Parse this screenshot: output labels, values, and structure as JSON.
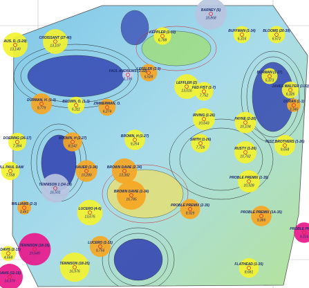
{
  "wells": [
    {
      "label": "BARNEY (5)",
      "value": "18,868",
      "color": "#b8c4e0"
    },
    {
      "label": "AUS. D. (1-29)",
      "value": "13,140",
      "color": "#f2f230"
    },
    {
      "label": "CROISSANT (27-40)",
      "value": "13,107",
      "color": "#f2f230"
    },
    {
      "label": "KEPPLER (1-33)",
      "value": "6,788",
      "color": "#f2f230"
    },
    {
      "label": "BUFFMAN (1-34)",
      "value": "6,316",
      "color": "#f2f230"
    },
    {
      "label": "BLOOMS (26-39)",
      "value": "6,572",
      "color": "#f2f230"
    },
    {
      "label": "LEFFLER (1-3)",
      "value": "6,528",
      "color": "#f5a623"
    },
    {
      "label": "FAUL ANDREWS (1-33)",
      "value": "1,196",
      "color": "#c8d0ec"
    },
    {
      "label": "LEFFLER (2)",
      "value": "13,016",
      "color": "#f2f230"
    },
    {
      "label": "FED FIST (1-7)",
      "value": "7,752",
      "color": "#f2f230"
    },
    {
      "label": "BURMAN (1-27)",
      "value": "5,373",
      "color": "#f2f230"
    },
    {
      "label": "JAMES WALTER (1-33)",
      "value": "6,326",
      "color": "#f2f230"
    },
    {
      "label": "DURMAN, H. (1-3)",
      "value": "9,779",
      "color": "#f5a623"
    },
    {
      "label": "BROWN, O. (1-3)",
      "value": "6,311",
      "color": "#f2f230"
    },
    {
      "label": "ZIMMERMAN, O.",
      "value": "6,274",
      "color": "#f5a623"
    },
    {
      "label": "IRVING (1-26)",
      "value": "10,643",
      "color": "#f2f230"
    },
    {
      "label": "PAYNE (2-26)",
      "value": "10,104",
      "color": "#f2f230"
    },
    {
      "label": "DURAN (1-3)",
      "value": "3,346",
      "color": "#f5a623"
    },
    {
      "label": "DOERING (26-17)",
      "value": "7,394",
      "color": "#f2f230"
    },
    {
      "label": "BROWN, H (2-27)",
      "value": "8,142",
      "color": "#f5a623"
    },
    {
      "label": "BROWN, H (1-27)",
      "value": "9,254",
      "color": "#f2f230"
    },
    {
      "label": "SMITH (1-26)",
      "value": "7,726",
      "color": "#f2f230"
    },
    {
      "label": "RUSTY (1-26)",
      "value": "10,762",
      "color": "#f2f230"
    },
    {
      "label": "TEST BROTHERS (1-26)",
      "value": "9,658",
      "color": "#f2f230"
    },
    {
      "label": "BILL PAUL DAW",
      "value": "7,558",
      "color": "#f2f230"
    },
    {
      "label": "BAUER (1-34)",
      "value": "10,280",
      "color": "#f5a623"
    },
    {
      "label": "BROWN DAVIE (2-34)",
      "value": "13,382",
      "color": "#f5a623"
    },
    {
      "label": "TENNISON 1 (34-19)",
      "value": "16,591",
      "color": "#b8c4e0"
    },
    {
      "label": "BROWN DAVIE (1-34)",
      "value": "16,785",
      "color": "#f5a623"
    },
    {
      "label": "PROBLE PREMIX (1-35)",
      "value": "10,928",
      "color": "#f2f230"
    },
    {
      "label": "WILLIAMS (2-3)",
      "value": "3,461",
      "color": "#f5a623"
    },
    {
      "label": "LUCERO (4-6)",
      "value": "13,676",
      "color": "#f2f230"
    },
    {
      "label": "PROBLE PREMIX (2-35)",
      "value": "8,929",
      "color": "#f5a623"
    },
    {
      "label": "PROBLE PREMIX (1A-35)",
      "value": "9,366",
      "color": "#f5a623"
    },
    {
      "label": "PROBLE PREMIX",
      "value": "9,316",
      "color": "#e8198b"
    },
    {
      "label": "TENNISON (18-15)",
      "value": "19,649",
      "color": "#e8198b"
    },
    {
      "label": "LUCERO (1-15)",
      "value": "9,756",
      "color": "#f5a623"
    },
    {
      "label": "W DAVIS (2-15)",
      "value": "4,668",
      "color": "#f2f230"
    },
    {
      "label": "TENNISON (18-25)",
      "value": "16,976",
      "color": "#f2f230"
    },
    {
      "label": "FLATHEAD (1-35)",
      "value": "8,681",
      "color": "#f2f230"
    },
    {
      "label": "DAVIS (11-15)",
      "value": "14,379",
      "color": "#e8198b"
    }
  ]
}
